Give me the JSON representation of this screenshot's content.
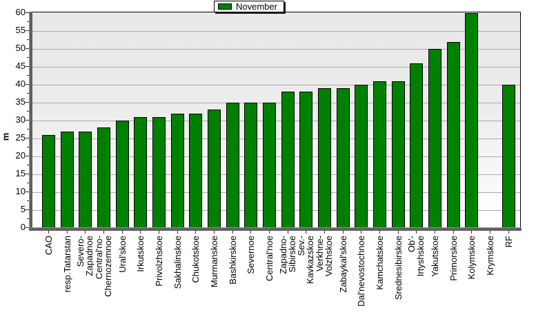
{
  "chart_data": {
    "type": "bar",
    "title": "",
    "legend": {
      "position": "top-center",
      "entries": [
        "November"
      ]
    },
    "xlabel": "",
    "ylabel": "m",
    "ylim": [
      0,
      60
    ],
    "yticks": [
      0,
      5,
      10,
      15,
      20,
      25,
      30,
      35,
      40,
      45,
      50,
      55,
      60
    ],
    "grid": true,
    "categories": [
      "CAO",
      "resp.Tatarstan",
      "Severo-Zapadnoe",
      "Central'no-Chernozemnoe",
      "Ural'skoe",
      "Irkutskoe",
      "Privolzhskoe",
      "Sakhalinskoe",
      "Chukotskoe",
      "Murmanskoe",
      "Bashkirskoe",
      "Severnoe",
      "Central'noe",
      "Zapadno-Sibirskoe",
      "Sev.-Kavkazskoe",
      "Verkhne-Volzhskoe",
      "Zabaykal'skoe",
      "Dal'nevostochnoe",
      "Kamchatskoe",
      "Srednesibirskoe",
      "Ob'-Irtyshskoe",
      "Yakutskoe",
      "Primorskoe",
      "Kolymskoe",
      "Krymskoe",
      "RF"
    ],
    "category_label_lines": [
      [
        "CAO"
      ],
      [
        "resp.Tatarstan"
      ],
      [
        "Severo-",
        "Zapadnoe"
      ],
      [
        "Central'no-",
        "Chernozemnoe"
      ],
      [
        "Ural'skoe"
      ],
      [
        "Irkutskoe"
      ],
      [
        "Privolzhskoe"
      ],
      [
        "Sakhalinskoe"
      ],
      [
        "Chukotskoe"
      ],
      [
        "Murmanskoe"
      ],
      [
        "Bashkirskoe"
      ],
      [
        "Severnoe"
      ],
      [
        "Central'noe"
      ],
      [
        "Zapadno-",
        "Sibirskoe"
      ],
      [
        "Sev.-",
        "Kavkazskoe"
      ],
      [
        "Verkhne-",
        "Volzhskoe"
      ],
      [
        "Zabaykal'skoe"
      ],
      [
        "Dal'nevostochnoe"
      ],
      [
        "Kamchatskoe"
      ],
      [
        "Srednesibirskoe"
      ],
      [
        "Ob'-",
        "Irtyshskoe"
      ],
      [
        "Yakutskoe"
      ],
      [
        "Primorskoe"
      ],
      [
        "Kolymskoe"
      ],
      [
        "Krymskoe"
      ],
      [
        "RF"
      ]
    ],
    "series": [
      {
        "name": "November",
        "values": [
          26,
          27,
          27,
          28,
          30,
          31,
          31,
          32,
          32,
          33,
          35,
          35,
          35,
          38,
          38,
          39,
          39,
          40,
          41,
          41,
          46,
          50,
          52,
          60,
          0,
          40
        ]
      }
    ],
    "colors": {
      "bar": "#008000",
      "bar_border": "#000000",
      "gridline": "#ababab",
      "plot_bg_top": "#e8e8e8",
      "plot_bg_bottom": "#ffffff",
      "axis_bar": "#5f5f5f",
      "legend_shadow": "#1b1b1b"
    }
  }
}
